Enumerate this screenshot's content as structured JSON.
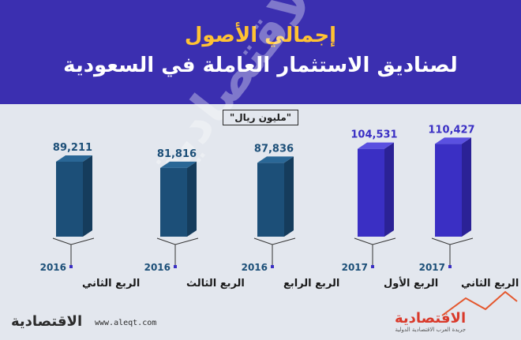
{
  "header": {
    "title": "إجمالي الأصول",
    "subtitle": "لصناديق الاستثمار العاملة في السعودية"
  },
  "unit_label": "\"مليون ريال\"",
  "watermark": "الاقتصادية",
  "footer": {
    "logo_left": "الاقتصادية",
    "url": "www.aleqt.com",
    "logo_right": "الاقتصادية",
    "logo_right_tagline": "جريدة العرب الاقتصادية الدولية"
  },
  "colors": {
    "header_bg": "#3b2fb0",
    "title": "#ffc233",
    "bar_2016_front": "#1c4f78",
    "bar_2016_side": "#153c5c",
    "bar_2016_top": "#2a6796",
    "bar_2017_front": "#3a2fc4",
    "bar_2017_side": "#2b2296",
    "bar_2017_top": "#5a50e0",
    "value_2016": "#1c4f78",
    "value_2017": "#3a2fc4"
  },
  "chart_data": {
    "type": "bar",
    "categories": [
      {
        "quarter": "الربع الثاني",
        "year": "2016"
      },
      {
        "quarter": "الربع الثالث",
        "year": "2016"
      },
      {
        "quarter": "الربع الرابع",
        "year": "2016"
      },
      {
        "quarter": "الربع الأول",
        "year": "2017"
      },
      {
        "quarter": "الربع الثاني",
        "year": "2017"
      }
    ],
    "values": [
      89211,
      81816,
      87836,
      104531,
      110427
    ],
    "value_labels": [
      "89,211",
      "81,816",
      "87,836",
      "104,531",
      "110,427"
    ],
    "unit": "مليون ريال",
    "ylim": [
      0,
      120000
    ],
    "grid": false,
    "legend": "none"
  }
}
